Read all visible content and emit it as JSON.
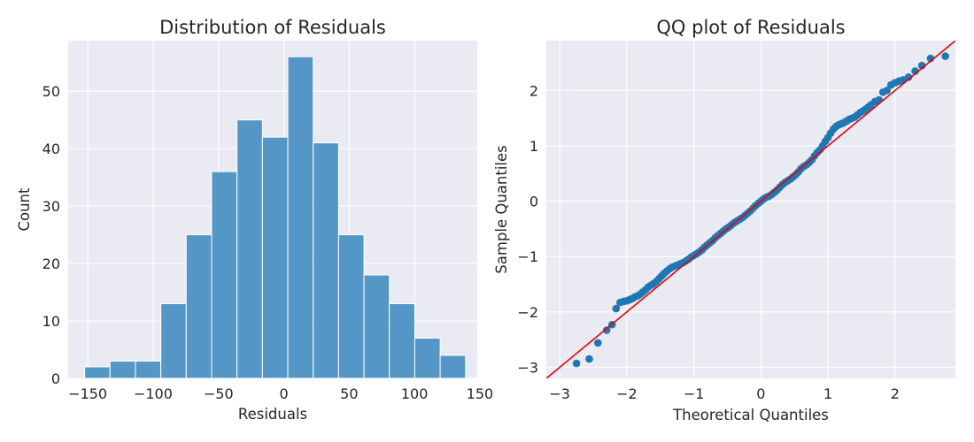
{
  "chart_data": [
    {
      "type": "bar",
      "title": "Distribution of Residuals",
      "xlabel": "Residuals",
      "ylabel": "Count",
      "bin_edges": [
        -152.4,
        -132.97,
        -113.54,
        -94.11,
        -74.68,
        -55.25,
        -35.82,
        -16.39,
        3.04,
        22.47,
        41.9,
        61.33,
        80.76,
        100.19,
        119.62,
        139.05
      ],
      "values": [
        2,
        3,
        3,
        13,
        25,
        36,
        45,
        42,
        56,
        41,
        25,
        18,
        13,
        7,
        4
      ],
      "xlim": [
        -165,
        148
      ],
      "ylim": [
        0,
        58.8
      ],
      "xticks": [
        -150,
        -100,
        -50,
        0,
        50,
        100,
        150
      ],
      "yticks": [
        0,
        10,
        20,
        30,
        40,
        50
      ],
      "xtick_labels": [
        "−150",
        "−100",
        "−50",
        "0",
        "50",
        "100",
        "150"
      ],
      "ytick_labels": [
        "0",
        "10",
        "20",
        "30",
        "40",
        "50"
      ],
      "grid": true,
      "bar_color": "#4c92c3",
      "background": "#eaeaf2"
    },
    {
      "type": "scatter",
      "title": "QQ plot of Residuals",
      "xlabel": "Theoretical Quantiles",
      "ylabel": "Sample Quantiles",
      "xlim": [
        -3.2,
        2.9
      ],
      "ylim": [
        -3.2,
        2.9
      ],
      "xticks": [
        -3,
        -2,
        -1,
        0,
        1,
        2
      ],
      "yticks": [
        -3,
        -2,
        -1,
        0,
        1,
        2
      ],
      "xtick_labels": [
        "−3",
        "−2",
        "−1",
        "0",
        "1",
        "2"
      ],
      "ytick_labels": [
        "−3",
        "−2",
        "−1",
        "0",
        "1",
        "2"
      ],
      "grid": true,
      "point_color": "#1f77b4",
      "reference_line": {
        "slope": 1,
        "intercept": 0,
        "color": "#e8000b"
      },
      "background": "#eaeaf2",
      "points": [
        [
          -2.75,
          -2.93
        ],
        [
          -2.56,
          -2.85
        ],
        [
          -2.43,
          -2.56
        ],
        [
          -2.3,
          -2.33
        ],
        [
          -2.22,
          -2.23
        ],
        [
          -2.16,
          -1.94
        ],
        [
          -2.1,
          -1.83
        ],
        [
          -2.05,
          -1.81
        ],
        [
          -2.0,
          -1.8
        ],
        [
          -1.96,
          -1.78
        ],
        [
          -1.92,
          -1.76
        ],
        [
          -1.88,
          -1.73
        ],
        [
          -1.84,
          -1.71
        ],
        [
          -1.8,
          -1.68
        ],
        [
          -1.76,
          -1.64
        ],
        [
          -1.72,
          -1.6
        ],
        [
          -1.68,
          -1.55
        ],
        [
          -1.64,
          -1.52
        ],
        [
          -1.6,
          -1.49
        ],
        [
          -1.56,
          -1.45
        ],
        [
          -1.52,
          -1.4
        ],
        [
          -1.48,
          -1.35
        ],
        [
          -1.44,
          -1.3
        ],
        [
          -1.4,
          -1.26
        ],
        [
          -1.36,
          -1.22
        ],
        [
          -1.32,
          -1.19
        ],
        [
          -1.28,
          -1.17
        ],
        [
          -1.24,
          -1.15
        ],
        [
          -1.2,
          -1.13
        ],
        [
          -1.16,
          -1.11
        ],
        [
          -1.12,
          -1.08
        ],
        [
          -1.08,
          -1.05
        ],
        [
          -1.04,
          -1.01
        ],
        [
          -1.0,
          -0.98
        ],
        [
          -0.96,
          -0.95
        ],
        [
          -0.92,
          -0.92
        ],
        [
          -0.88,
          -0.88
        ],
        [
          -0.84,
          -0.83
        ],
        [
          -0.8,
          -0.79
        ],
        [
          -0.76,
          -0.75
        ],
        [
          -0.72,
          -0.71
        ],
        [
          -0.68,
          -0.66
        ],
        [
          -0.64,
          -0.62
        ],
        [
          -0.6,
          -0.58
        ],
        [
          -0.56,
          -0.54
        ],
        [
          -0.52,
          -0.5
        ],
        [
          -0.48,
          -0.47
        ],
        [
          -0.44,
          -0.43
        ],
        [
          -0.4,
          -0.39
        ],
        [
          -0.36,
          -0.36
        ],
        [
          -0.32,
          -0.33
        ],
        [
          -0.28,
          -0.3
        ],
        [
          -0.24,
          -0.26
        ],
        [
          -0.2,
          -0.22
        ],
        [
          -0.16,
          -0.18
        ],
        [
          -0.12,
          -0.13
        ],
        [
          -0.08,
          -0.08
        ],
        [
          -0.04,
          -0.04
        ],
        [
          0.0,
          0.0
        ],
        [
          0.04,
          0.04
        ],
        [
          0.08,
          0.07
        ],
        [
          0.12,
          0.09
        ],
        [
          0.16,
          0.12
        ],
        [
          0.2,
          0.16
        ],
        [
          0.24,
          0.2
        ],
        [
          0.28,
          0.25
        ],
        [
          0.32,
          0.3
        ],
        [
          0.36,
          0.34
        ],
        [
          0.4,
          0.37
        ],
        [
          0.44,
          0.4
        ],
        [
          0.48,
          0.44
        ],
        [
          0.52,
          0.48
        ],
        [
          0.56,
          0.53
        ],
        [
          0.6,
          0.59
        ],
        [
          0.64,
          0.63
        ],
        [
          0.68,
          0.66
        ],
        [
          0.72,
          0.7
        ],
        [
          0.76,
          0.75
        ],
        [
          0.8,
          0.82
        ],
        [
          0.84,
          0.88
        ],
        [
          0.88,
          0.93
        ],
        [
          0.92,
          1.0
        ],
        [
          0.96,
          1.08
        ],
        [
          1.0,
          1.15
        ],
        [
          1.04,
          1.23
        ],
        [
          1.08,
          1.3
        ],
        [
          1.12,
          1.35
        ],
        [
          1.16,
          1.38
        ],
        [
          1.2,
          1.4
        ],
        [
          1.24,
          1.42
        ],
        [
          1.28,
          1.45
        ],
        [
          1.32,
          1.48
        ],
        [
          1.36,
          1.5
        ],
        [
          1.4,
          1.52
        ],
        [
          1.44,
          1.56
        ],
        [
          1.48,
          1.6
        ],
        [
          1.52,
          1.63
        ],
        [
          1.56,
          1.66
        ],
        [
          1.6,
          1.7
        ],
        [
          1.64,
          1.74
        ],
        [
          1.7,
          1.8
        ],
        [
          1.76,
          1.83
        ],
        [
          1.82,
          1.97
        ],
        [
          1.88,
          2.0
        ],
        [
          1.94,
          2.1
        ],
        [
          2.0,
          2.14
        ],
        [
          2.06,
          2.17
        ],
        [
          2.12,
          2.19
        ],
        [
          2.2,
          2.24
        ],
        [
          2.3,
          2.35
        ],
        [
          2.4,
          2.45
        ],
        [
          2.53,
          2.58
        ],
        [
          2.75,
          2.62
        ]
      ]
    }
  ]
}
